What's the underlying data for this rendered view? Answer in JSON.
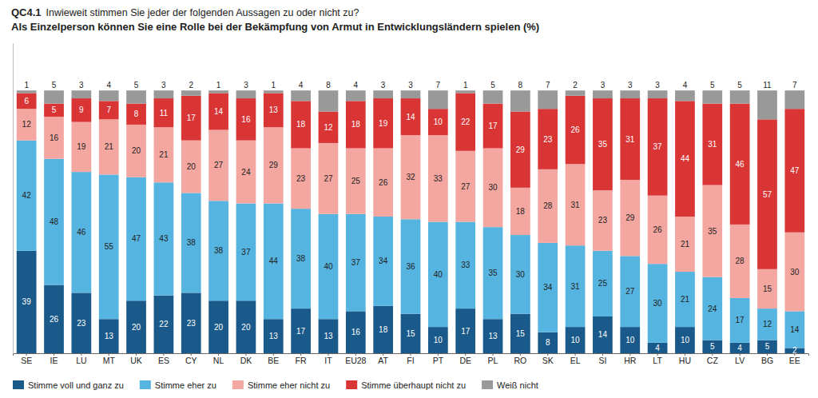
{
  "chart_data": {
    "type": "bar",
    "title": "QC4.1",
    "subtitle": [
      "Inwieweit stimmen Sie jeder der folgenden Aussagen zu oder nicht zu?",
      "Als Einzelperson können Sie eine Rolle bei der Bekämpfung von Armut in Entwicklungsländern spielen  (%)"
    ],
    "categories": [
      "SE",
      "IE",
      "LU",
      "MT",
      "UK",
      "ES",
      "CY",
      "NL",
      "DK",
      "BE",
      "FR",
      "IT",
      "EU28",
      "AT",
      "FI",
      "PT",
      "DE",
      "PL",
      "RO",
      "SK",
      "EL",
      "SI",
      "HR",
      "LT",
      "HU",
      "CZ",
      "LV",
      "BG",
      "EE"
    ],
    "series": [
      {
        "name": "Stimme voll und ganz zu",
        "color": "#1a5a8a",
        "values": [
          39,
          26,
          23,
          13,
          20,
          22,
          23,
          20,
          20,
          13,
          17,
          13,
          16,
          18,
          15,
          10,
          17,
          13,
          15,
          8,
          10,
          14,
          10,
          4,
          10,
          5,
          4,
          5,
          2
        ]
      },
      {
        "name": "Stimme eher zu",
        "color": "#56b4e0",
        "values": [
          42,
          48,
          46,
          55,
          47,
          43,
          38,
          38,
          37,
          44,
          38,
          40,
          37,
          34,
          36,
          40,
          33,
          35,
          30,
          34,
          31,
          25,
          27,
          30,
          21,
          24,
          17,
          12,
          14
        ]
      },
      {
        "name": "Stimme eher nicht zu",
        "color": "#f4a7a0",
        "values": [
          12,
          16,
          19,
          21,
          20,
          21,
          20,
          27,
          24,
          29,
          23,
          27,
          25,
          26,
          32,
          33,
          27,
          30,
          18,
          28,
          31,
          23,
          29,
          26,
          21,
          35,
          28,
          15,
          30
        ]
      },
      {
        "name": "Stimme überhaupt nicht zu",
        "color": "#d93535",
        "values": [
          6,
          5,
          9,
          7,
          8,
          11,
          17,
          14,
          16,
          13,
          18,
          12,
          18,
          19,
          14,
          10,
          22,
          17,
          29,
          23,
          26,
          35,
          31,
          37,
          44,
          31,
          46,
          57,
          47
        ]
      },
      {
        "name": "Weiß nicht",
        "color": "#999999",
        "values": [
          1,
          5,
          3,
          4,
          5,
          3,
          2,
          1,
          3,
          1,
          4,
          8,
          4,
          3,
          3,
          7,
          1,
          5,
          8,
          7,
          2,
          3,
          3,
          3,
          4,
          5,
          5,
          11,
          7
        ]
      }
    ],
    "stacked": true,
    "data_labels": true,
    "ylim": [
      0,
      118
    ],
    "tick_labels": "x",
    "grid": false
  }
}
